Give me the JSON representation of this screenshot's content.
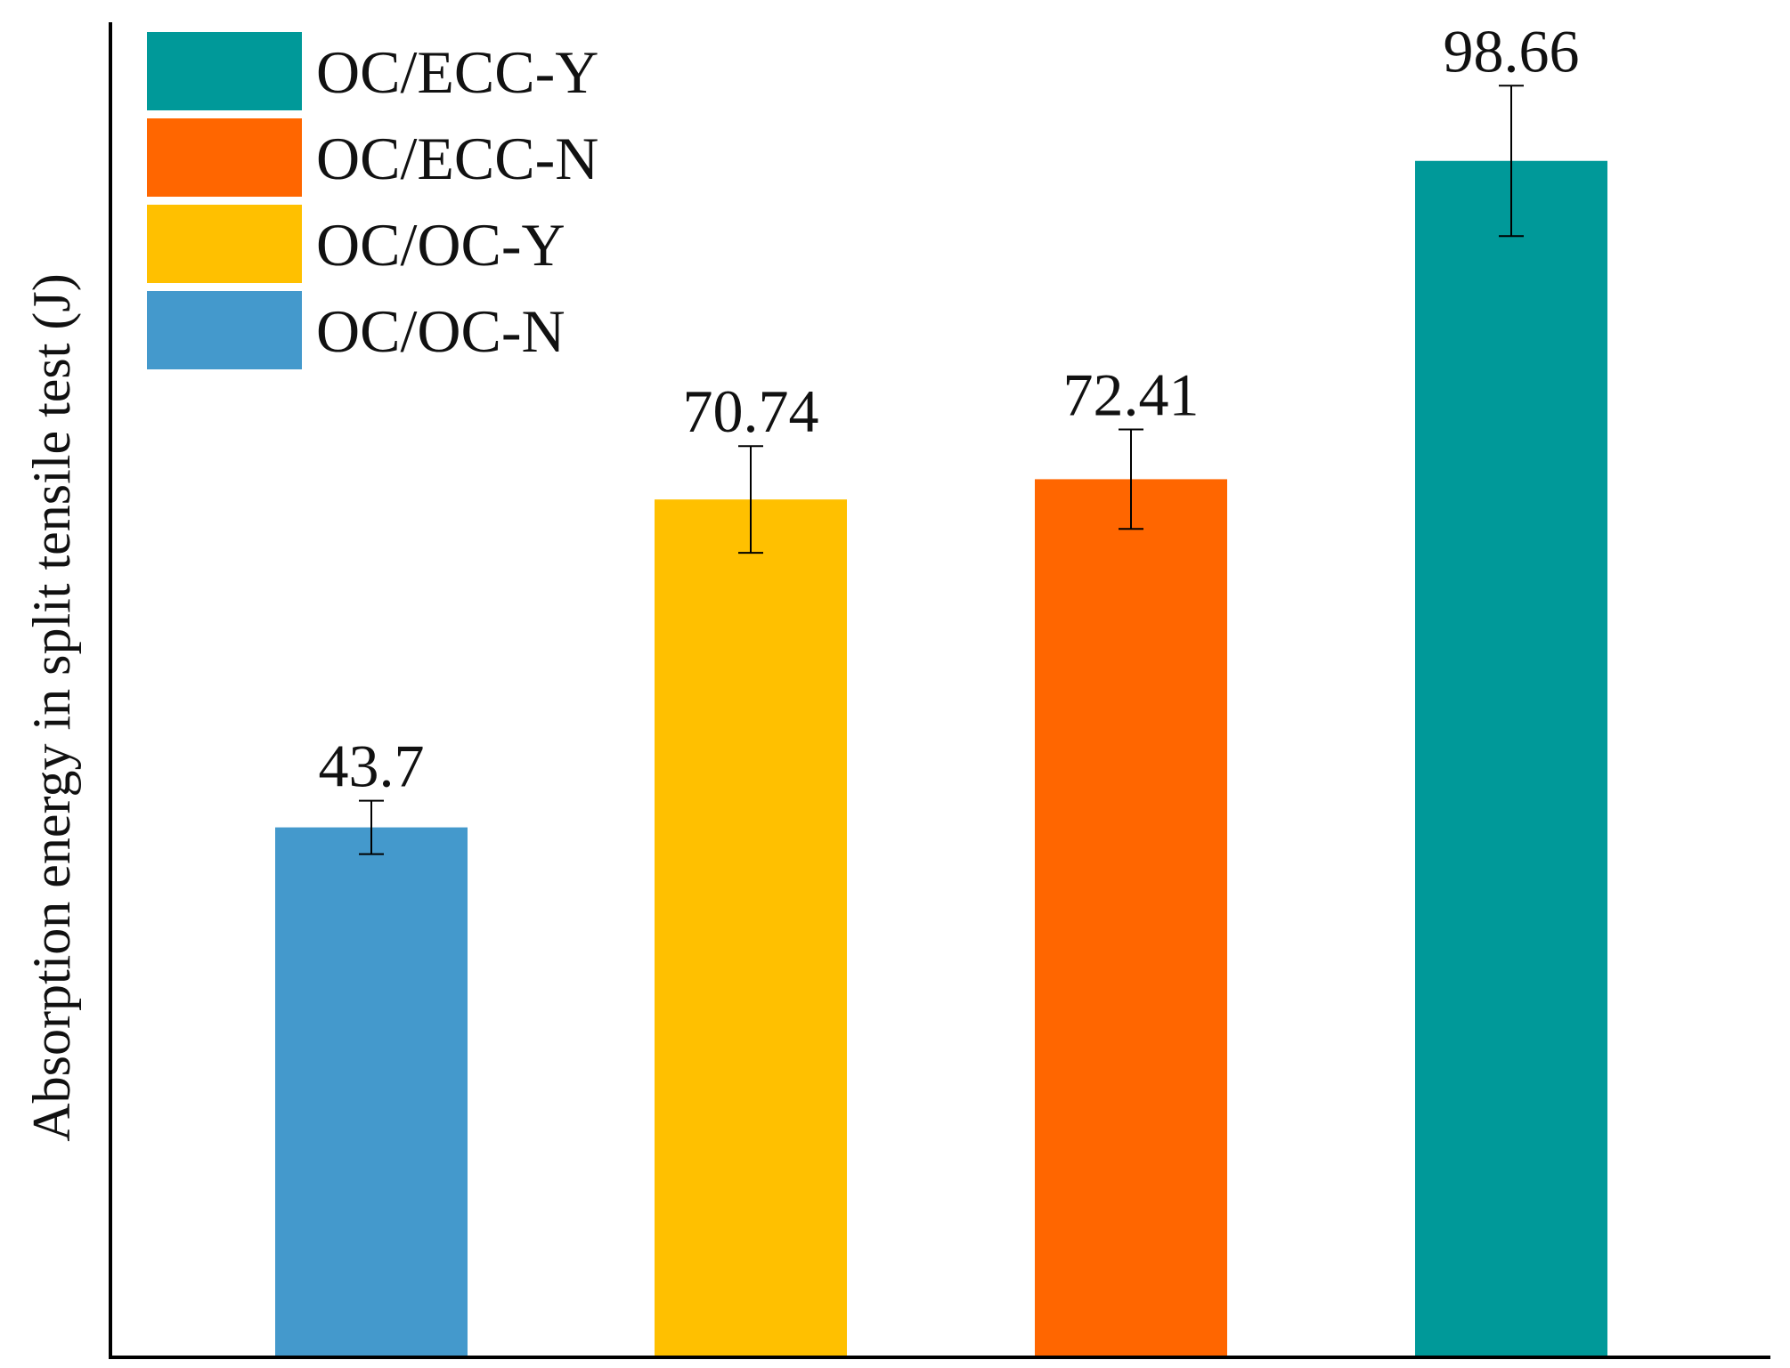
{
  "chart_data": {
    "type": "bar",
    "title": "",
    "xlabel": "",
    "ylabel": "Absorption energy in split tensile test (J)",
    "ylim": [
      0,
      110
    ],
    "grid": false,
    "legend_placement": "top-left",
    "categories": [
      "OC/OC-N",
      "OC/OC-Y",
      "OC/ECC-N",
      "OC/ECC-Y"
    ],
    "values": [
      43.7,
      70.74,
      72.41,
      98.66
    ],
    "data_labels": [
      "43.7",
      "70.74",
      "72.41",
      "98.66"
    ],
    "error": [
      2.2,
      4.4,
      4.1,
      6.2
    ],
    "colors": [
      "#4499cc",
      "#ffc000",
      "#ff6600",
      "#009999"
    ],
    "legend": [
      {
        "label": "OC/ECC-Y",
        "color": "#009999"
      },
      {
        "label": "OC/ECC-N",
        "color": "#ff6600"
      },
      {
        "label": "OC/OC-Y",
        "color": "#ffc000"
      },
      {
        "label": "OC/OC-N",
        "color": "#4499cc"
      }
    ]
  }
}
